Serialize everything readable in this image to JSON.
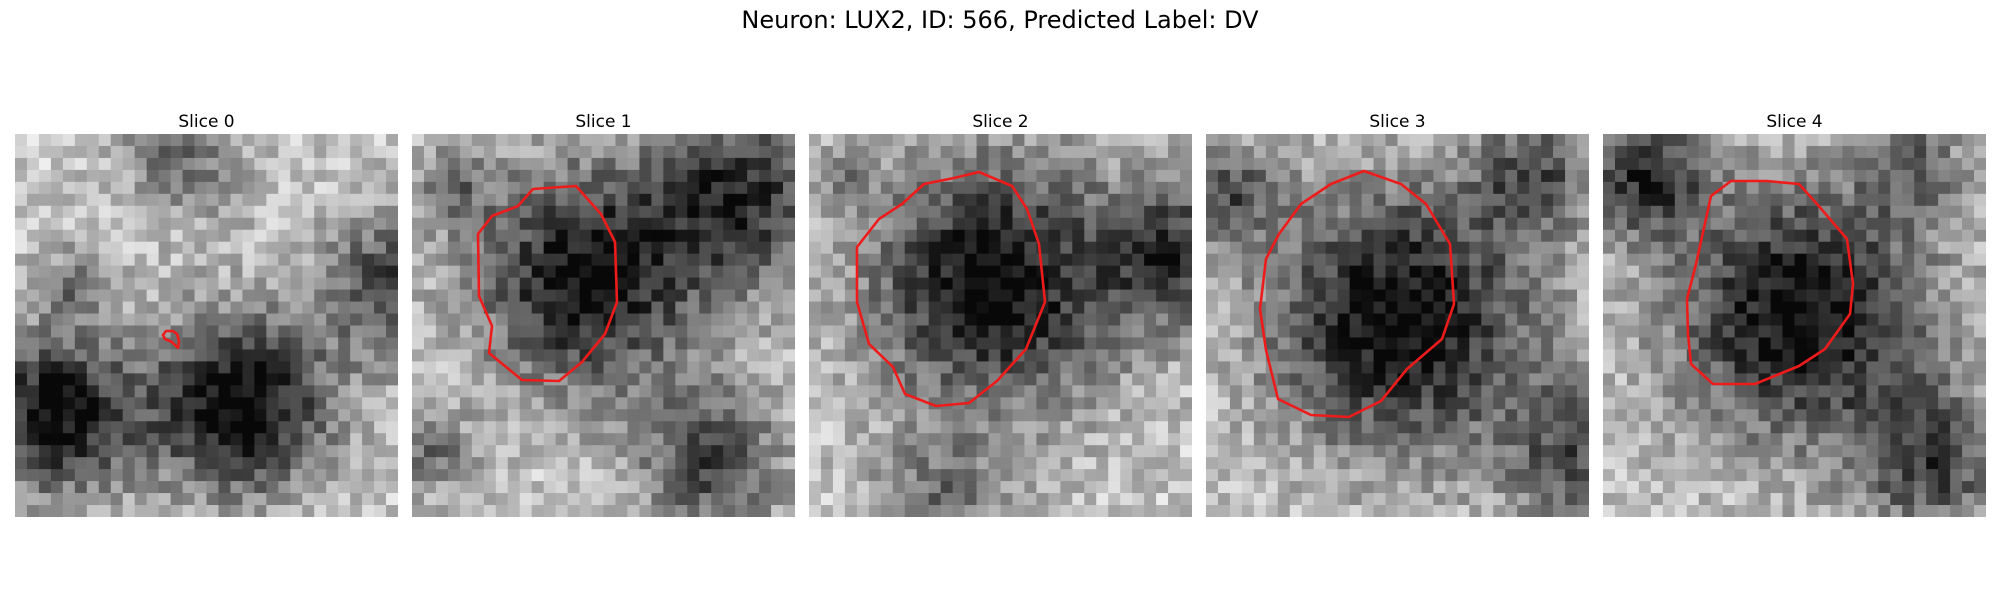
{
  "figure": {
    "title": "Neuron: LUX2, ID: 566, Predicted Label: DV"
  },
  "panels": [
    {
      "title": "Slice 0",
      "outline_color": "#ee1b1b"
    },
    {
      "title": "Slice 1",
      "outline_color": "#ee1b1b"
    },
    {
      "title": "Slice 2",
      "outline_color": "#ee1b1b"
    },
    {
      "title": "Slice 3",
      "outline_color": "#ee1b1b"
    },
    {
      "title": "Slice 4",
      "outline_color": "#ee1b1b"
    }
  ]
}
